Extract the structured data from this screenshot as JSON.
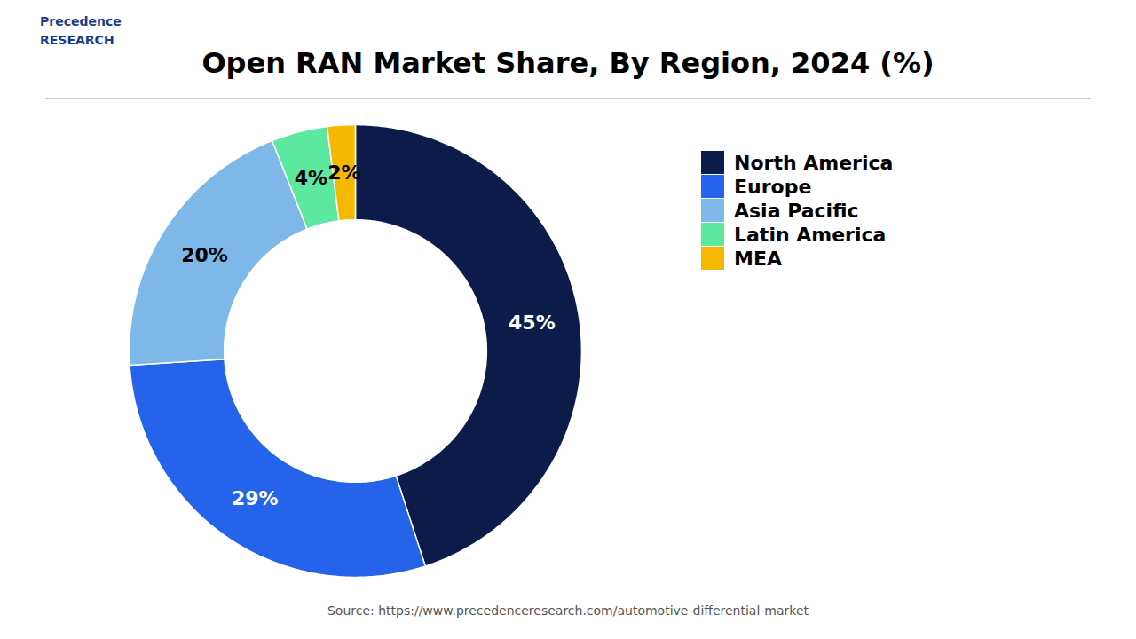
{
  "chart_data": {
    "type": "pie",
    "title": "Open RAN Market Share, By Region, 2024 (%)",
    "categories": [
      "North America",
      "Europe",
      "Asia Pacific",
      "Latin America",
      "MEA"
    ],
    "values": [
      45,
      29,
      20,
      4,
      2
    ],
    "value_labels": [
      "45%",
      "29%",
      "20%",
      "4%",
      "2%"
    ],
    "colors": [
      "#0d1b4b",
      "#2563eb",
      "#7eb8e8",
      "#5de8a0",
      "#f5b800"
    ],
    "data_labels": true,
    "legend": "right",
    "caption": "Source: https://www.precedenceresearch.com/automotive-differential-market",
    "annotations": [
      "Precedence",
      "RESEARCH"
    ]
  }
}
